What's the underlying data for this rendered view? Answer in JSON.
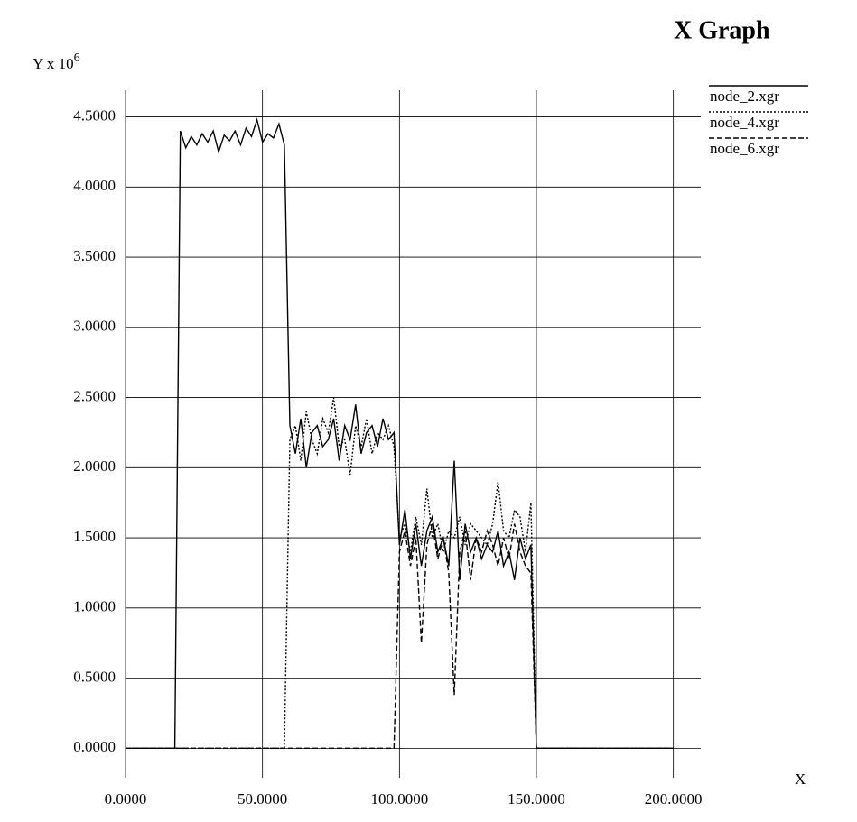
{
  "chart_data": {
    "type": "line",
    "title": "X Graph",
    "y_label": "Y x 10",
    "y_label_exponent": "6",
    "x_label": "X",
    "x": [
      0,
      2,
      4,
      6,
      8,
      10,
      12,
      14,
      16,
      18,
      20,
      22,
      24,
      26,
      28,
      30,
      32,
      34,
      36,
      38,
      40,
      42,
      44,
      46,
      48,
      50,
      52,
      54,
      56,
      58,
      60,
      62,
      64,
      66,
      68,
      70,
      72,
      74,
      76,
      78,
      80,
      82,
      84,
      86,
      88,
      90,
      92,
      94,
      96,
      98,
      100,
      102,
      104,
      106,
      108,
      110,
      112,
      114,
      116,
      118,
      120,
      122,
      124,
      126,
      128,
      130,
      132,
      134,
      136,
      138,
      140,
      142,
      144,
      146,
      148,
      150,
      152,
      154,
      156,
      158,
      160,
      162,
      164,
      166,
      168,
      170,
      172,
      174,
      176,
      178,
      180,
      182,
      184,
      186,
      188,
      190,
      192,
      194,
      196,
      198,
      200
    ],
    "series": [
      {
        "name": "node_2.xgr",
        "color": "#000000",
        "dash": "none",
        "values": [
          0,
          0,
          0,
          0,
          0,
          0,
          0,
          0,
          0,
          0,
          4.4,
          4.28,
          4.36,
          4.3,
          4.38,
          4.32,
          4.4,
          4.25,
          4.37,
          4.33,
          4.4,
          4.3,
          4.42,
          4.36,
          4.48,
          4.32,
          4.38,
          4.35,
          4.45,
          4.3,
          2.3,
          2.1,
          2.35,
          2.0,
          2.25,
          2.3,
          2.15,
          2.2,
          2.35,
          2.05,
          2.3,
          2.2,
          2.45,
          2.1,
          2.25,
          2.3,
          2.15,
          2.35,
          2.2,
          2.25,
          1.45,
          1.7,
          1.35,
          1.6,
          1.3,
          1.55,
          1.65,
          1.4,
          1.5,
          1.3,
          2.05,
          1.2,
          1.6,
          1.4,
          1.5,
          1.35,
          1.45,
          1.4,
          1.55,
          1.3,
          1.4,
          1.2,
          1.5,
          1.35,
          1.45,
          0,
          0,
          0,
          0,
          0,
          0,
          0,
          0,
          0,
          0,
          0,
          0,
          0,
          0,
          0,
          0,
          0,
          0,
          0,
          0,
          0,
          0,
          0,
          0,
          0,
          0
        ]
      },
      {
        "name": "node_4.xgr",
        "color": "#000000",
        "dash": "2,2",
        "values": [
          0,
          0,
          0,
          0,
          0,
          0,
          0,
          0,
          0,
          0,
          0,
          0,
          0,
          0,
          0,
          0,
          0,
          0,
          0,
          0,
          0,
          0,
          0,
          0,
          0,
          0,
          0,
          0,
          0,
          0,
          2.2,
          2.3,
          2.05,
          2.4,
          2.2,
          2.1,
          2.35,
          2.25,
          2.5,
          2.15,
          2.2,
          1.95,
          2.3,
          2.15,
          2.35,
          2.1,
          2.25,
          2.2,
          2.3,
          2.15,
          1.5,
          1.6,
          1.4,
          1.65,
          1.45,
          1.85,
          1.5,
          1.6,
          1.4,
          1.55,
          1.5,
          1.65,
          1.45,
          1.6,
          1.55,
          1.5,
          1.45,
          1.6,
          1.9,
          1.55,
          1.5,
          1.7,
          1.65,
          1.4,
          1.75,
          0,
          0,
          0,
          0,
          0,
          0,
          0,
          0,
          0,
          0,
          0,
          0,
          0,
          0,
          0,
          0,
          0,
          0,
          0,
          0,
          0,
          0,
          0,
          0,
          0,
          0
        ]
      },
      {
        "name": "node_6.xgr",
        "color": "#000000",
        "dash": "6,3",
        "values": [
          0,
          0,
          0,
          0,
          0,
          0,
          0,
          0,
          0,
          0,
          0,
          0,
          0,
          0,
          0,
          0,
          0,
          0,
          0,
          0,
          0,
          0,
          0,
          0,
          0,
          0,
          0,
          0,
          0,
          0,
          0,
          0,
          0,
          0,
          0,
          0,
          0,
          0,
          0,
          0,
          0,
          0,
          0,
          0,
          0,
          0,
          0,
          0,
          0,
          0,
          1.4,
          1.55,
          1.3,
          1.5,
          0.75,
          1.45,
          1.6,
          1.35,
          1.5,
          1.25,
          0.38,
          1.4,
          1.55,
          1.2,
          1.5,
          1.4,
          1.55,
          1.45,
          1.3,
          1.5,
          1.35,
          1.6,
          1.4,
          1.3,
          1.25,
          0,
          0,
          0,
          0,
          0,
          0,
          0,
          0,
          0,
          0,
          0,
          0,
          0,
          0,
          0,
          0,
          0,
          0,
          0,
          0,
          0,
          0,
          0,
          0,
          0,
          0
        ]
      }
    ],
    "xlim": [
      0,
      210
    ],
    "ylim": [
      -0.21,
      4.69
    ],
    "xticks": [
      {
        "value": 0,
        "label": "0.0000"
      },
      {
        "value": 50,
        "label": "50.0000"
      },
      {
        "value": 100,
        "label": "100.0000"
      },
      {
        "value": 150,
        "label": "150.0000"
      },
      {
        "value": 200,
        "label": "200.0000"
      }
    ],
    "yticks": [
      {
        "value": 0,
        "label": "0.0000"
      },
      {
        "value": 0.5,
        "label": "0.5000"
      },
      {
        "value": 1,
        "label": "1.0000"
      },
      {
        "value": 1.5,
        "label": "1.5000"
      },
      {
        "value": 2,
        "label": "2.0000"
      },
      {
        "value": 2.5,
        "label": "2.5000"
      },
      {
        "value": 3,
        "label": "3.0000"
      },
      {
        "value": 3.5,
        "label": "3.5000"
      },
      {
        "value": 4,
        "label": "4.0000"
      },
      {
        "value": 4.5,
        "label": "4.5000"
      }
    ],
    "grid": true
  }
}
